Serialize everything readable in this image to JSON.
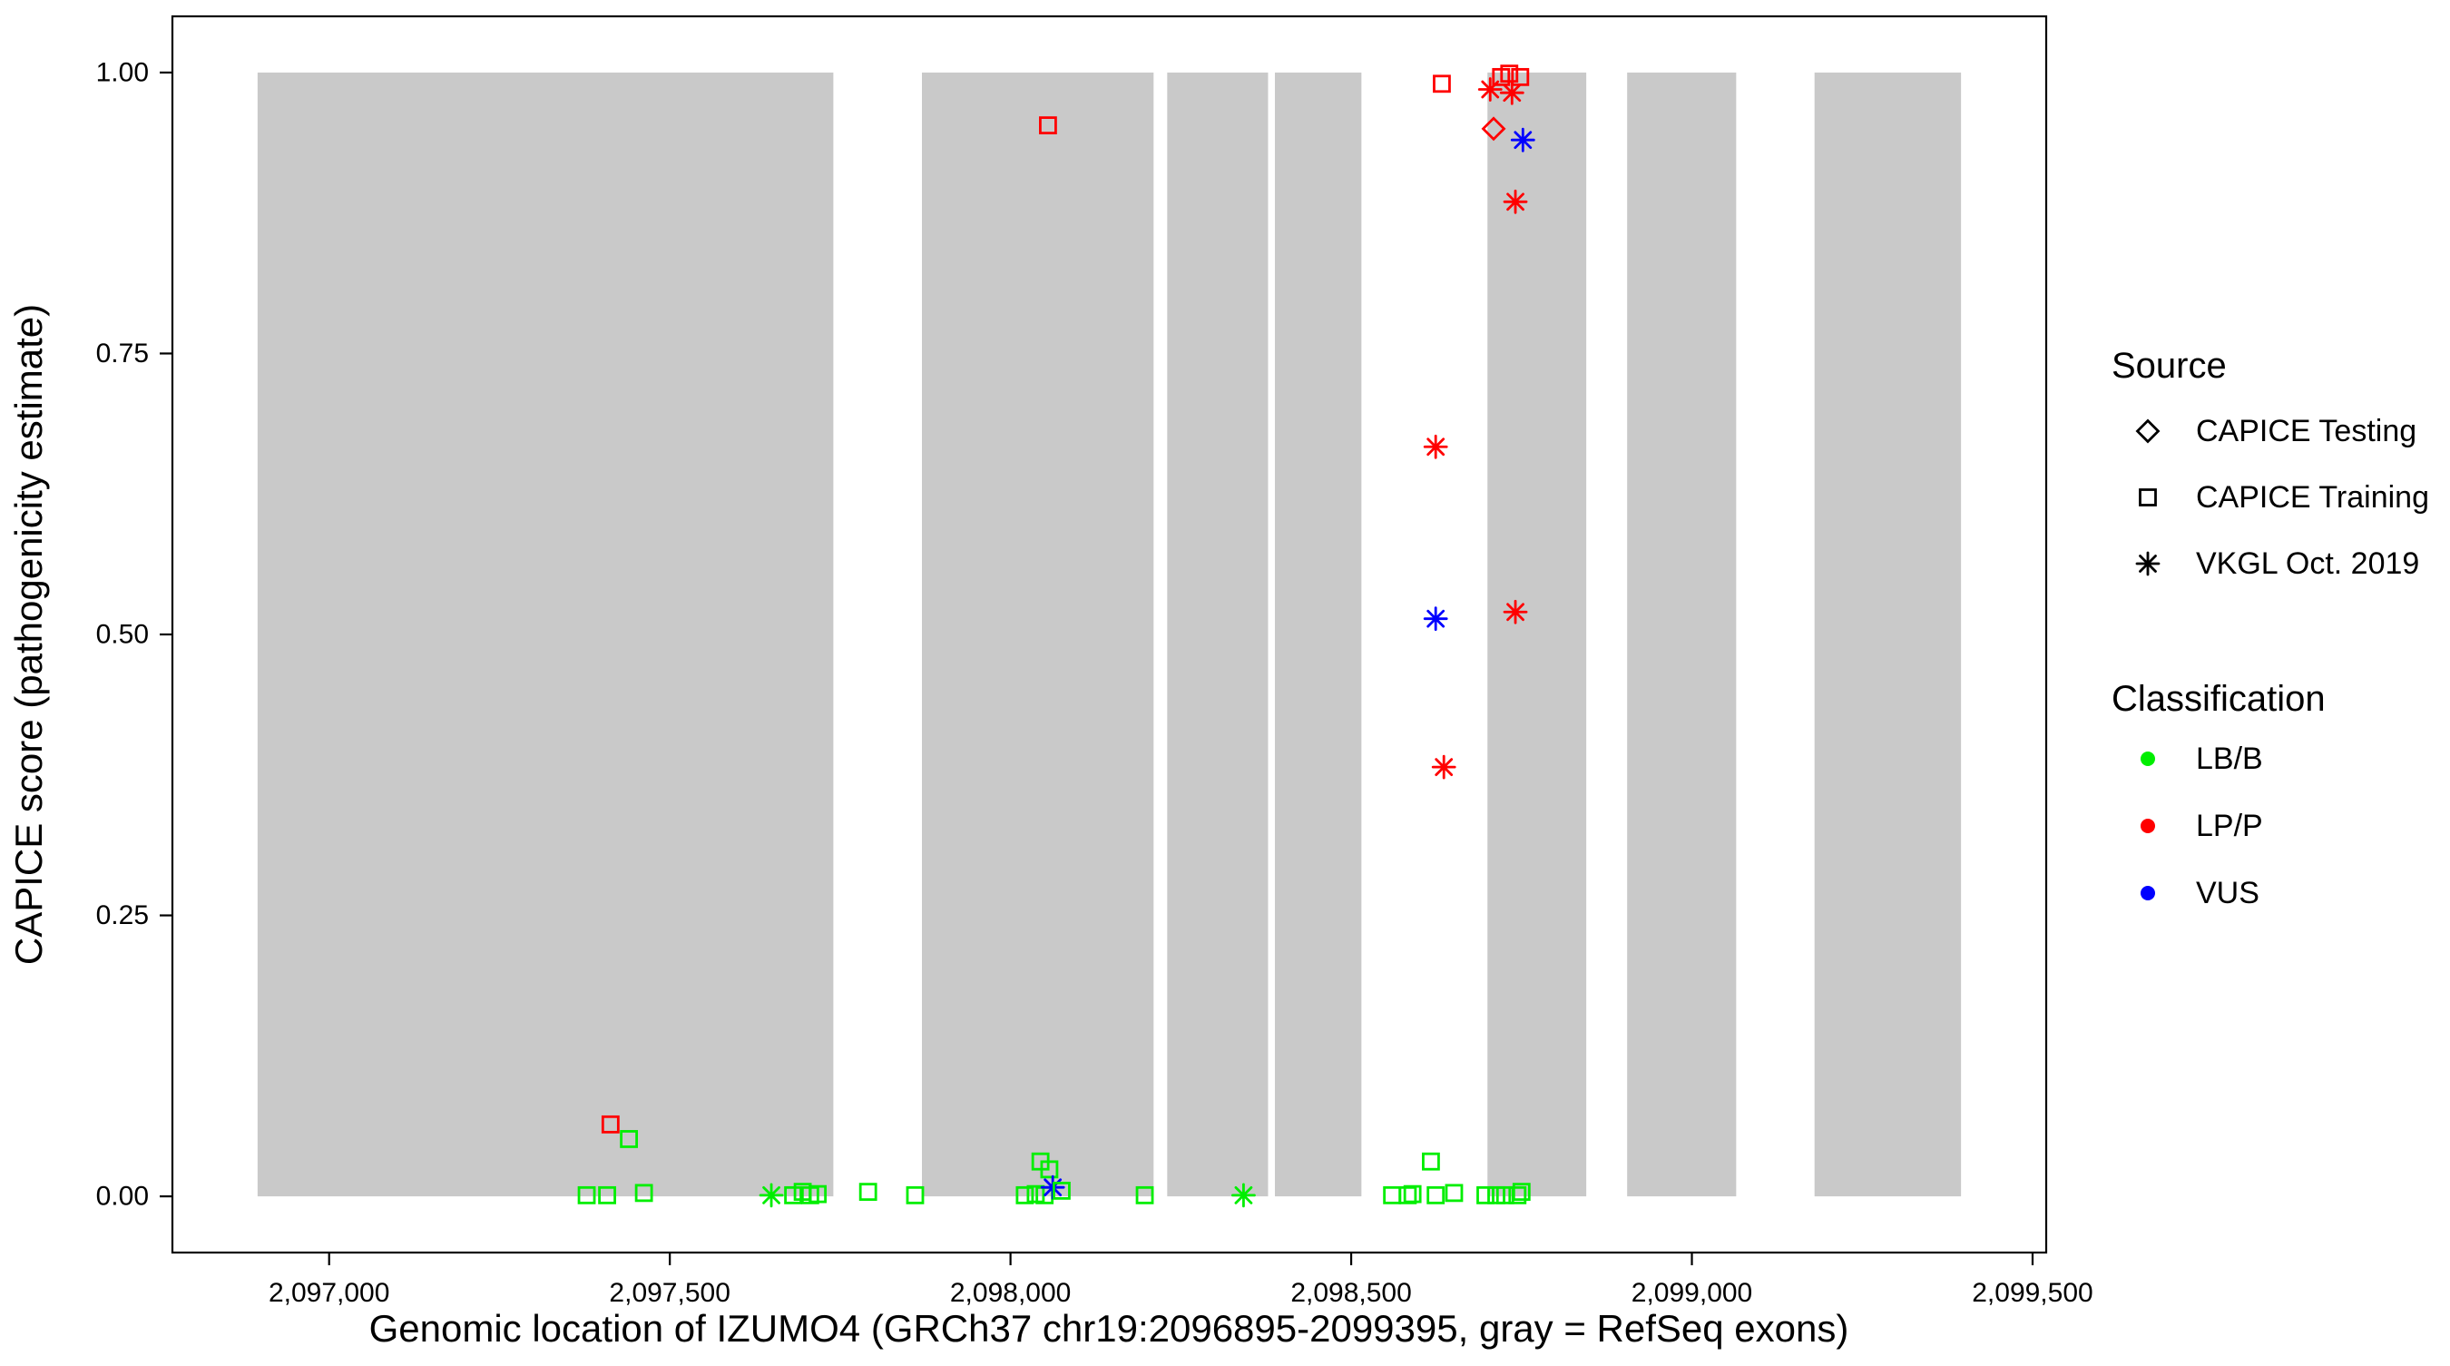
{
  "chart_data": {
    "type": "scatter",
    "title": "",
    "xlabel": "Genomic location of IZUMO4 (GRCh37 chr19:2096895-2099395, gray = RefSeq exons)",
    "ylabel": "CAPICE score (pathogenicity estimate)",
    "xlim": [
      2096770,
      2099520
    ],
    "ylim": [
      -0.05,
      1.05
    ],
    "x_ticks": [
      2097000,
      2097500,
      2098000,
      2098500,
      2099000,
      2099500
    ],
    "x_tick_labels": [
      "2,097,000",
      "2,097,500",
      "2,098,000",
      "2,098,500",
      "2,099,000",
      "2,099,500"
    ],
    "y_ticks": [
      0,
      0.25,
      0.5,
      0.75,
      1.0
    ],
    "y_tick_labels": [
      "0.00",
      "0.25",
      "0.50",
      "0.75",
      "1.00"
    ],
    "grid": false,
    "legend_position": "right",
    "exon_color": "#c9c9c9",
    "exon_y": [
      0,
      1
    ],
    "exons": [
      [
        2096895,
        2097740
      ],
      [
        2097870,
        2098210
      ],
      [
        2098230,
        2098378
      ],
      [
        2098388,
        2098515
      ],
      [
        2098700,
        2098845
      ],
      [
        2098905,
        2099065
      ],
      [
        2099180,
        2099395
      ]
    ],
    "classification_colors": {
      "LB/B": "#00ee00",
      "LP/P": "#ff0000",
      "VUS": "#0000ff"
    },
    "source_shapes": {
      "CAPICE Testing": "diamond",
      "CAPICE Training": "square",
      "VKGL Oct. 2019": "asterisk"
    },
    "points": [
      {
        "x": 2097378,
        "y": 0.001,
        "source": "CAPICE Training",
        "classification": "LB/B"
      },
      {
        "x": 2097408,
        "y": 0.001,
        "source": "CAPICE Training",
        "classification": "LB/B"
      },
      {
        "x": 2097413,
        "y": 0.064,
        "source": "CAPICE Training",
        "classification": "LP/P"
      },
      {
        "x": 2097440,
        "y": 0.051,
        "source": "CAPICE Training",
        "classification": "LB/B"
      },
      {
        "x": 2097462,
        "y": 0.003,
        "source": "CAPICE Training",
        "classification": "LB/B"
      },
      {
        "x": 2097649,
        "y": 0.001,
        "source": "VKGL Oct. 2019",
        "classification": "LB/B"
      },
      {
        "x": 2097681,
        "y": 0.001,
        "source": "CAPICE Training",
        "classification": "LB/B"
      },
      {
        "x": 2097695,
        "y": 0.004,
        "source": "CAPICE Training",
        "classification": "LB/B"
      },
      {
        "x": 2097706,
        "y": 0.001,
        "source": "CAPICE Training",
        "classification": "LB/B"
      },
      {
        "x": 2097717,
        "y": 0.002,
        "source": "CAPICE Training",
        "classification": "LB/B"
      },
      {
        "x": 2097791,
        "y": 0.004,
        "source": "CAPICE Training",
        "classification": "LB/B"
      },
      {
        "x": 2097860,
        "y": 0.001,
        "source": "CAPICE Training",
        "classification": "LB/B"
      },
      {
        "x": 2098021,
        "y": 0.001,
        "source": "CAPICE Training",
        "classification": "LB/B"
      },
      {
        "x": 2098037,
        "y": 0.002,
        "source": "CAPICE Training",
        "classification": "LB/B"
      },
      {
        "x": 2098044,
        "y": 0.031,
        "source": "CAPICE Training",
        "classification": "LB/B"
      },
      {
        "x": 2098050,
        "y": 0.001,
        "source": "CAPICE Training",
        "classification": "LB/B"
      },
      {
        "x": 2098057,
        "y": 0.024,
        "source": "CAPICE Training",
        "classification": "LB/B"
      },
      {
        "x": 2098055,
        "y": 0.953,
        "source": "CAPICE Training",
        "classification": "LP/P"
      },
      {
        "x": 2098062,
        "y": 0.008,
        "source": "VKGL Oct. 2019",
        "classification": "VUS"
      },
      {
        "x": 2098075,
        "y": 0.005,
        "source": "CAPICE Training",
        "classification": "LB/B"
      },
      {
        "x": 2098197,
        "y": 0.001,
        "source": "CAPICE Training",
        "classification": "LB/B"
      },
      {
        "x": 2098342,
        "y": 0.001,
        "source": "VKGL Oct. 2019",
        "classification": "LB/B"
      },
      {
        "x": 2098560,
        "y": 0.001,
        "source": "CAPICE Training",
        "classification": "LB/B"
      },
      {
        "x": 2098583,
        "y": 0.001,
        "source": "CAPICE Training",
        "classification": "LB/B"
      },
      {
        "x": 2098590,
        "y": 0.002,
        "source": "CAPICE Training",
        "classification": "LB/B"
      },
      {
        "x": 2098617,
        "y": 0.031,
        "source": "CAPICE Training",
        "classification": "LB/B"
      },
      {
        "x": 2098624,
        "y": 0.001,
        "source": "CAPICE Training",
        "classification": "LB/B"
      },
      {
        "x": 2098624,
        "y": 0.667,
        "source": "VKGL Oct. 2019",
        "classification": "LP/P"
      },
      {
        "x": 2098624,
        "y": 0.514,
        "source": "VKGL Oct. 2019",
        "classification": "VUS"
      },
      {
        "x": 2098633,
        "y": 0.99,
        "source": "CAPICE Training",
        "classification": "LP/P"
      },
      {
        "x": 2098636,
        "y": 0.382,
        "source": "VKGL Oct. 2019",
        "classification": "LP/P"
      },
      {
        "x": 2098651,
        "y": 0.003,
        "source": "CAPICE Training",
        "classification": "LB/B"
      },
      {
        "x": 2098697,
        "y": 0.001,
        "source": "CAPICE Training",
        "classification": "LB/B"
      },
      {
        "x": 2098704,
        "y": 0.985,
        "source": "VKGL Oct. 2019",
        "classification": "LP/P"
      },
      {
        "x": 2098709,
        "y": 0.95,
        "source": "CAPICE Testing",
        "classification": "LP/P"
      },
      {
        "x": 2098713,
        "y": 0.001,
        "source": "CAPICE Training",
        "classification": "LB/B"
      },
      {
        "x": 2098720,
        "y": 0.996,
        "source": "CAPICE Training",
        "classification": "LP/P"
      },
      {
        "x": 2098726,
        "y": 0.001,
        "source": "CAPICE Training",
        "classification": "LB/B"
      },
      {
        "x": 2098732,
        "y": 0.999,
        "source": "CAPICE Training",
        "classification": "LP/P"
      },
      {
        "x": 2098736,
        "y": 0.982,
        "source": "VKGL Oct. 2019",
        "classification": "LP/P"
      },
      {
        "x": 2098741,
        "y": 0.885,
        "source": "VKGL Oct. 2019",
        "classification": "LP/P"
      },
      {
        "x": 2098741,
        "y": 0.52,
        "source": "VKGL Oct. 2019",
        "classification": "LP/P"
      },
      {
        "x": 2098744,
        "y": 0.001,
        "source": "CAPICE Training",
        "classification": "LB/B"
      },
      {
        "x": 2098748,
        "y": 0.996,
        "source": "CAPICE Training",
        "classification": "LP/P"
      },
      {
        "x": 2098750,
        "y": 0.004,
        "source": "CAPICE Training",
        "classification": "LB/B"
      },
      {
        "x": 2098752,
        "y": 0.94,
        "source": "VKGL Oct. 2019",
        "classification": "VUS"
      }
    ]
  },
  "legend": {
    "source_title": "Source",
    "source_items": [
      {
        "label": "CAPICE Testing",
        "shape": "diamond"
      },
      {
        "label": "CAPICE Training",
        "shape": "square"
      },
      {
        "label": "VKGL Oct. 2019",
        "shape": "asterisk"
      }
    ],
    "classification_title": "Classification",
    "classification_items": [
      {
        "label": "LB/B",
        "color": "#00ee00"
      },
      {
        "label": "LP/P",
        "color": "#ff0000"
      },
      {
        "label": "VUS",
        "color": "#0000ff"
      }
    ]
  }
}
